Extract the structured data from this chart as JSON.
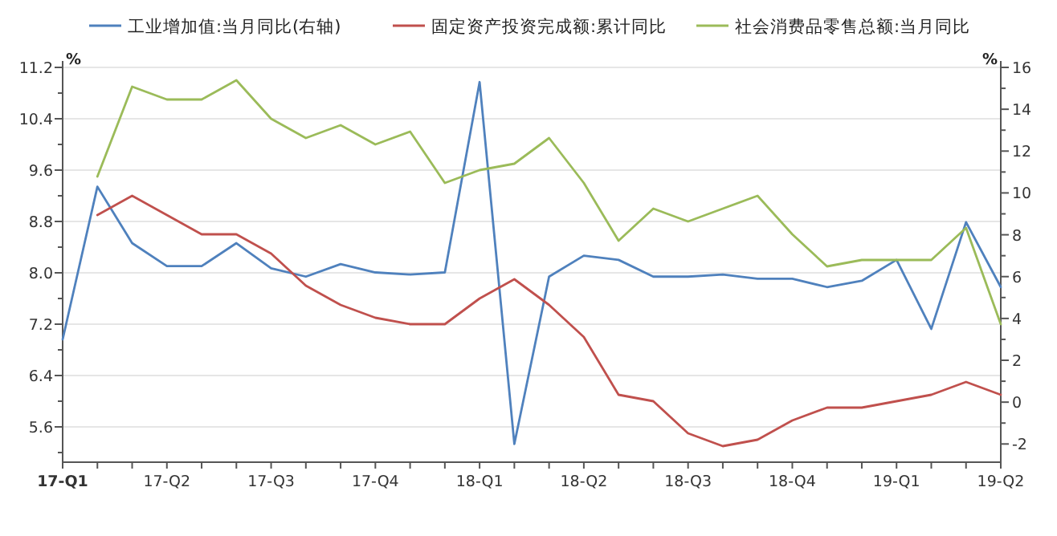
{
  "chart_data": {
    "type": "line",
    "ylabel": "%",
    "y2label": "%",
    "legend": "top",
    "grid": "y",
    "categories": [
      "17-Q1",
      null,
      null,
      "17-Q2",
      null,
      null,
      "17-Q3",
      null,
      null,
      "17-Q4",
      null,
      null,
      "18-Q1",
      null,
      null,
      "18-Q2",
      null,
      null,
      "18-Q3",
      null,
      null,
      "18-Q4",
      null,
      null,
      "19-Q1",
      null,
      null,
      "19-Q2"
    ],
    "ylim": [
      5.05,
      11.2
    ],
    "yticks": [
      {
        "value": 5.2,
        "label": null
      },
      5.6,
      {
        "value": 6.0,
        "label": null
      },
      6.4,
      {
        "value": 6.8,
        "label": null
      },
      7.2,
      {
        "value": 7.6,
        "label": null
      },
      {
        "value": 8.0,
        "label": "8.0"
      },
      {
        "value": 8.4,
        "label": null
      },
      8.8,
      {
        "value": 9.2,
        "label": null
      },
      9.6,
      {
        "value": 10.0,
        "label": null
      },
      10.4,
      {
        "value": 10.8,
        "label": null
      },
      11.2
    ],
    "y2lim": [
      -2.87,
      16
    ],
    "y2ticks": [
      -2,
      {
        "value": -1,
        "label": null
      },
      0,
      {
        "value": 1,
        "label": null
      },
      2,
      {
        "value": 3,
        "label": null
      },
      4,
      {
        "value": 5,
        "label": null
      },
      6,
      {
        "value": 7,
        "label": null
      },
      8,
      {
        "value": 9,
        "label": null
      },
      10,
      {
        "value": 11,
        "label": null
      },
      12,
      {
        "value": 13,
        "label": null
      },
      14,
      {
        "value": 15,
        "label": null
      },
      16
    ],
    "series": [
      {
        "name": "工业增加值:当月同比(右轴)",
        "color": "#4f81bd",
        "axis": "y2",
        "values": [
          3.0,
          10.3,
          7.6,
          6.5,
          6.5,
          7.6,
          6.4,
          6.0,
          6.6,
          6.2,
          6.1,
          6.2,
          15.3,
          -2.0,
          6.0,
          7.0,
          6.8,
          6.0,
          6.0,
          6.1,
          5.9,
          5.9,
          5.5,
          5.8,
          6.8,
          3.5,
          8.6,
          5.5
        ]
      },
      {
        "name": "固定资产投资完成额:累计同比",
        "color": "#c0504d",
        "values": [
          null,
          8.9,
          9.2,
          8.9,
          8.6,
          8.6,
          8.3,
          7.8,
          7.5,
          7.3,
          7.2,
          7.2,
          7.6,
          7.9,
          7.5,
          7.0,
          6.1,
          6.0,
          5.5,
          5.3,
          5.4,
          5.7,
          5.9,
          5.9,
          6.0,
          6.1,
          6.3,
          6.1
        ]
      },
      {
        "name": "社会消费品零售总额:当月同比",
        "color": "#9bbb59",
        "values": [
          null,
          9.5,
          10.9,
          10.7,
          10.7,
          11.0,
          10.4,
          10.1,
          10.3,
          10.0,
          10.2,
          9.4,
          9.6,
          9.7,
          10.1,
          9.4,
          8.5,
          9.0,
          8.8,
          9.0,
          9.2,
          8.6,
          8.1,
          8.2,
          8.2,
          8.2,
          8.7,
          7.2
        ]
      }
    ]
  }
}
